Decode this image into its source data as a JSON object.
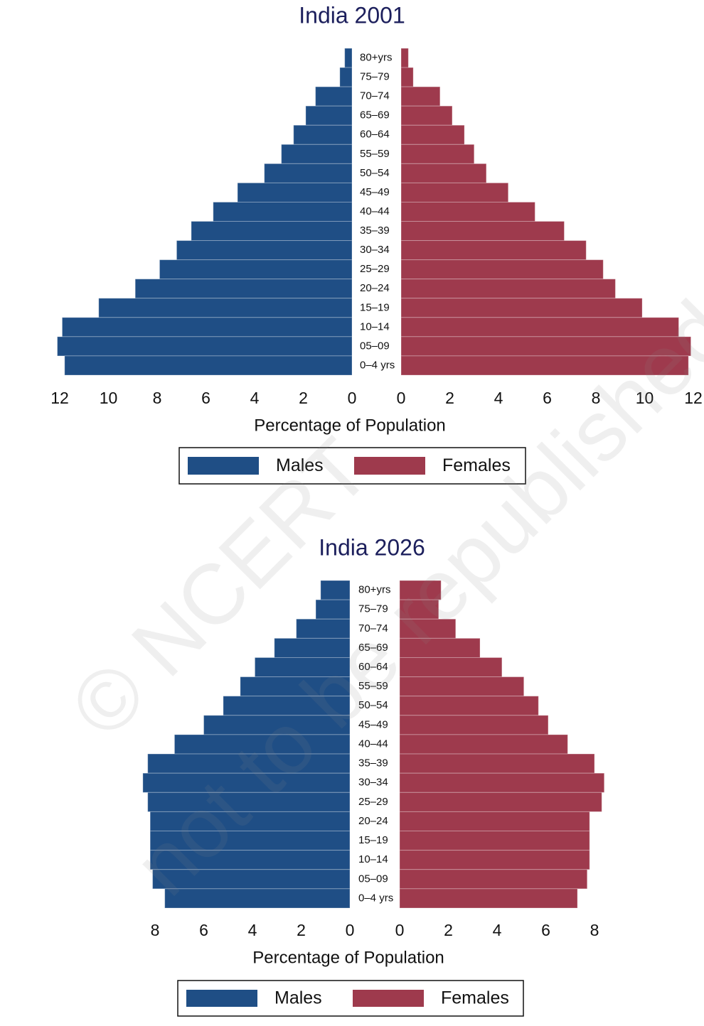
{
  "chart_data": [
    {
      "type": "pyramid",
      "title": "India 2001",
      "x_label": "Percentage of Population",
      "categories": [
        "80+yrs",
        "75–79",
        "70–74",
        "65–69",
        "60–64",
        "55–59",
        "50–54",
        "45–49",
        "40–44",
        "35–39",
        "30–34",
        "25–29",
        "20–24",
        "15–19",
        "10–14",
        "05–09",
        "0–4 yrs"
      ],
      "series": [
        {
          "name": "Males",
          "color": "#1f4e85",
          "side": "left",
          "values": [
            0.3,
            0.5,
            1.5,
            1.9,
            2.4,
            2.9,
            3.6,
            4.7,
            5.7,
            6.6,
            7.2,
            7.9,
            8.9,
            10.4,
            11.9,
            12.1,
            11.8
          ]
        },
        {
          "name": "Females",
          "color": "#9e3a4d",
          "side": "right",
          "values": [
            0.3,
            0.5,
            1.6,
            2.1,
            2.6,
            3.0,
            3.5,
            4.4,
            5.5,
            6.7,
            7.6,
            8.3,
            8.8,
            9.9,
            11.4,
            11.9,
            11.8
          ]
        }
      ],
      "xlim": [
        0,
        12.2
      ],
      "xticks": [
        0,
        2,
        4,
        6,
        8,
        10,
        12
      ]
    },
    {
      "type": "pyramid",
      "title": "India 2026",
      "x_label": "Percentage of Population",
      "categories": [
        "80+yrs",
        "75–79",
        "70–74",
        "65–69",
        "60–64",
        "55–59",
        "50–54",
        "45–49",
        "40–44",
        "35–39",
        "30–34",
        "25–29",
        "20–24",
        "15–19",
        "10–14",
        "05–09",
        "0–4 yrs"
      ],
      "series": [
        {
          "name": "Males",
          "color": "#1f4e85",
          "side": "left",
          "values": [
            1.2,
            1.4,
            2.2,
            3.1,
            3.9,
            4.5,
            5.2,
            6.0,
            7.2,
            8.3,
            8.5,
            8.3,
            8.2,
            8.2,
            8.2,
            8.1,
            7.6
          ]
        },
        {
          "name": "Females",
          "color": "#9e3a4d",
          "side": "right",
          "values": [
            1.7,
            1.6,
            2.3,
            3.3,
            4.2,
            5.1,
            5.7,
            6.1,
            6.9,
            8.0,
            8.4,
            8.3,
            7.8,
            7.8,
            7.8,
            7.7,
            7.3
          ]
        }
      ],
      "xlim": [
        0,
        8.6
      ],
      "xticks": [
        0,
        2,
        4,
        6,
        8
      ]
    }
  ],
  "watermark": [
    "© NCERT",
    "not to be republished"
  ]
}
